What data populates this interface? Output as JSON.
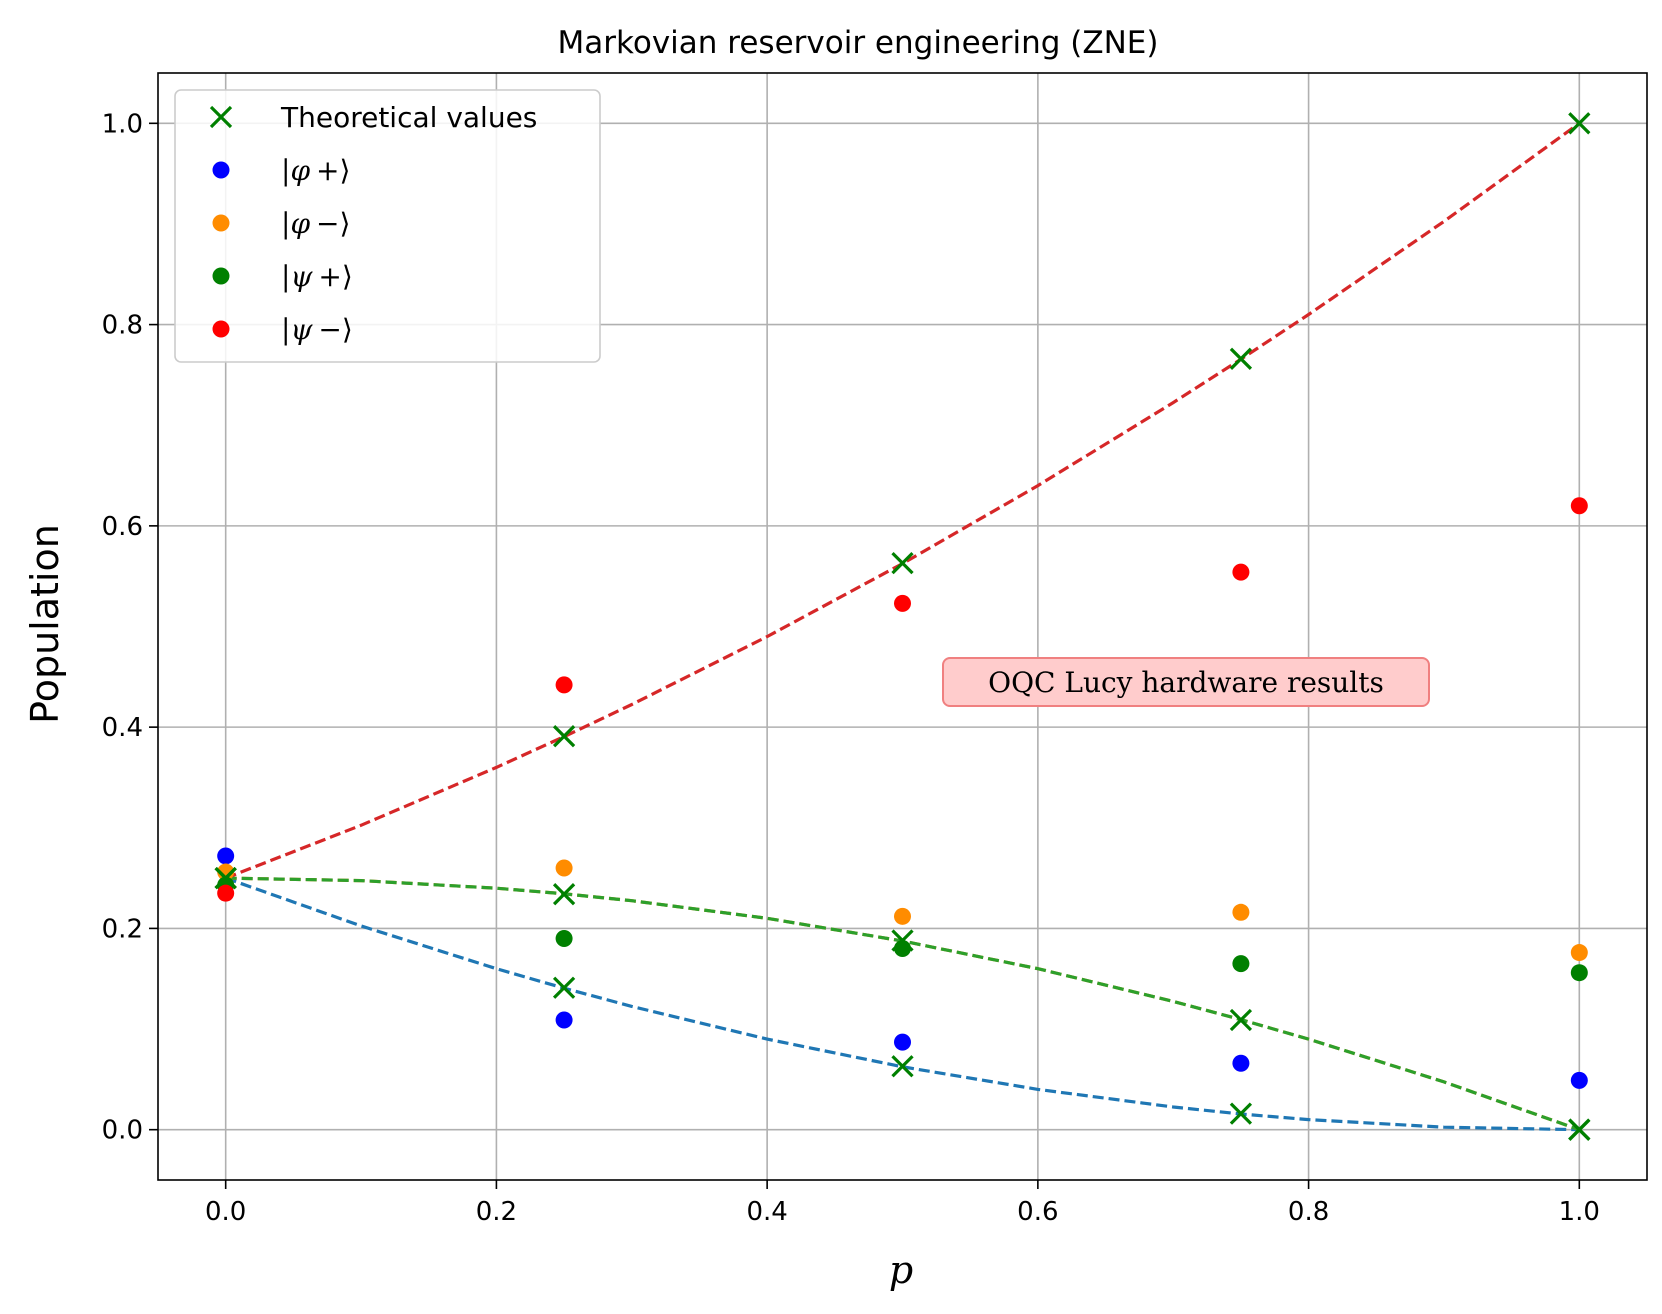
{
  "chart_data": {
    "type": "scatter",
    "title": "Markovian reservoir engineering (ZNE)",
    "xlabel": "p",
    "ylabel": "Population",
    "xlim": [
      -0.05,
      1.05
    ],
    "ylim": [
      -0.05,
      1.05
    ],
    "grid": true,
    "xticks": [
      0.0,
      0.2,
      0.4,
      0.6,
      0.8,
      1.0
    ],
    "xtick_labels": [
      "0.0",
      "0.2",
      "0.4",
      "0.6",
      "0.8",
      "1.0"
    ],
    "yticks": [
      0.0,
      0.2,
      0.4,
      0.6,
      0.8,
      1.0
    ],
    "ytick_labels": [
      "0.0",
      "0.2",
      "0.4",
      "0.6",
      "0.8",
      "1.0"
    ],
    "legend_position": "top-left",
    "annotation": "OQC Lucy hardware results",
    "colors": {
      "phi_plus": "#0000ff",
      "phi_minus": "#ff8c00",
      "psi_plus": "#008000",
      "psi_minus": "#ff0000",
      "theory_marker": "#008000",
      "curve_blue": "#1f77b4",
      "curve_orange": "#ff7f0e",
      "curve_green": "#2ca02c",
      "curve_red": "#d62728",
      "annotation_bg": "#ffcccc",
      "annotation_edge": "#f08080"
    },
    "theory": {
      "name": "Theoretical values",
      "x": [
        0.0,
        0.25,
        0.5,
        0.75,
        1.0
      ],
      "y_sets": [
        [
          0.25,
          0.141,
          0.063,
          0.016,
          0.0
        ],
        [
          0.25,
          0.234,
          0.188,
          0.109,
          0.0
        ],
        [
          0.25,
          0.391,
          0.563,
          0.766,
          1.0
        ]
      ]
    },
    "curves": [
      {
        "name": "phi_plus_theory",
        "color": "curve_blue",
        "x": [
          0.0,
          0.1,
          0.2,
          0.25,
          0.3,
          0.4,
          0.5,
          0.6,
          0.7,
          0.75,
          0.8,
          0.9,
          1.0
        ],
        "y": [
          0.25,
          0.2025,
          0.16,
          0.1406,
          0.1225,
          0.09,
          0.0625,
          0.04,
          0.0225,
          0.0156,
          0.01,
          0.0025,
          0.0
        ]
      },
      {
        "name": "phi_minus_theory",
        "color": "curve_orange",
        "x": [
          0.0,
          0.1,
          0.2,
          0.25,
          0.3,
          0.4,
          0.5,
          0.6,
          0.7,
          0.75,
          0.8,
          0.9,
          1.0
        ],
        "y": [
          0.25,
          0.2475,
          0.24,
          0.2344,
          0.2275,
          0.21,
          0.1875,
          0.16,
          0.1275,
          0.1094,
          0.09,
          0.0475,
          0.0
        ]
      },
      {
        "name": "psi_plus_theory",
        "color": "curve_green",
        "x": [
          0.0,
          0.1,
          0.2,
          0.25,
          0.3,
          0.4,
          0.5,
          0.6,
          0.7,
          0.75,
          0.8,
          0.9,
          1.0
        ],
        "y": [
          0.25,
          0.2475,
          0.24,
          0.2344,
          0.2275,
          0.21,
          0.1875,
          0.16,
          0.1275,
          0.1094,
          0.09,
          0.0475,
          0.0
        ]
      },
      {
        "name": "psi_minus_theory",
        "color": "curve_red",
        "x": [
          0.0,
          0.1,
          0.2,
          0.25,
          0.3,
          0.4,
          0.5,
          0.6,
          0.7,
          0.75,
          0.8,
          0.9,
          1.0
        ],
        "y": [
          0.25,
          0.3025,
          0.36,
          0.3906,
          0.4225,
          0.49,
          0.5625,
          0.64,
          0.7225,
          0.7656,
          0.81,
          0.9025,
          1.0
        ]
      }
    ],
    "series": [
      {
        "name": "|φ+⟩",
        "label_sym": "φ",
        "label_sign": "+",
        "color": "phi_plus",
        "x": [
          0.0,
          0.25,
          0.5,
          0.75,
          1.0
        ],
        "y": [
          0.272,
          0.109,
          0.087,
          0.066,
          0.049
        ]
      },
      {
        "name": "|φ−⟩",
        "label_sym": "φ",
        "label_sign": "−",
        "color": "phi_minus",
        "x": [
          0.0,
          0.25,
          0.5,
          0.75,
          1.0
        ],
        "y": [
          0.256,
          0.26,
          0.212,
          0.216,
          0.176
        ]
      },
      {
        "name": "|ψ+⟩",
        "label_sym": "ψ",
        "label_sign": "+",
        "color": "psi_plus",
        "x": [
          0.0,
          0.25,
          0.5,
          0.75,
          1.0
        ],
        "y": [
          0.243,
          0.19,
          0.18,
          0.165,
          0.156
        ]
      },
      {
        "name": "|ψ−⟩",
        "label_sym": "ψ",
        "label_sign": "−",
        "color": "psi_minus",
        "x": [
          0.0,
          0.25,
          0.5,
          0.75,
          1.0
        ],
        "y": [
          0.235,
          0.442,
          0.523,
          0.554,
          0.62
        ]
      }
    ]
  }
}
